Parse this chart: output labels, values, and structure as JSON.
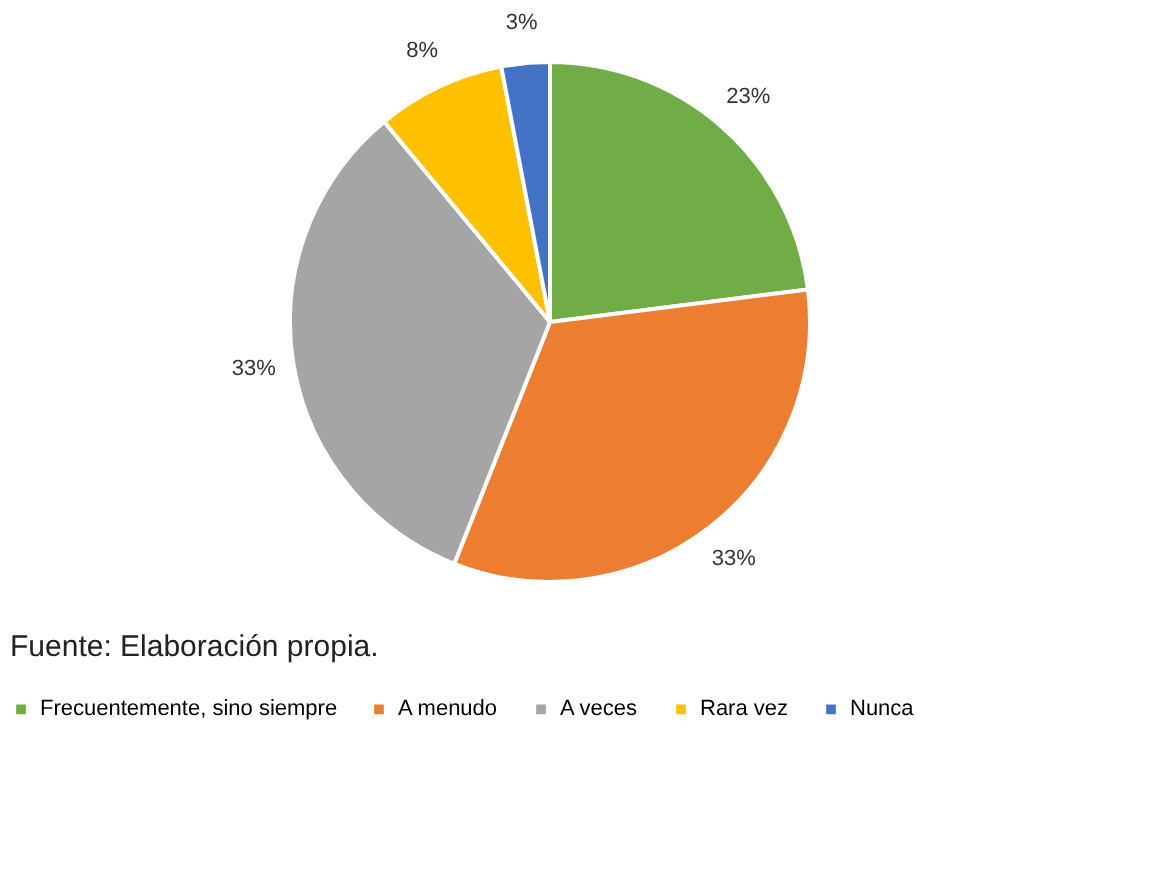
{
  "chart_data": {
    "type": "pie",
    "categories": [
      "Frecuentemente, sino siempre",
      "A menudo",
      "A veces",
      "Rara vez",
      "Nunca"
    ],
    "values": [
      23,
      33,
      33,
      8,
      3
    ],
    "colors": [
      "#70ad47",
      "#ed7d31",
      "#a5a5a5",
      "#ffc000",
      "#4472c4"
    ],
    "value_labels": [
      "23%",
      "33%",
      "33%",
      "8%",
      "3%"
    ],
    "legend": "bottom",
    "annotations": [
      "Fuente: Elaboración propia."
    ]
  }
}
